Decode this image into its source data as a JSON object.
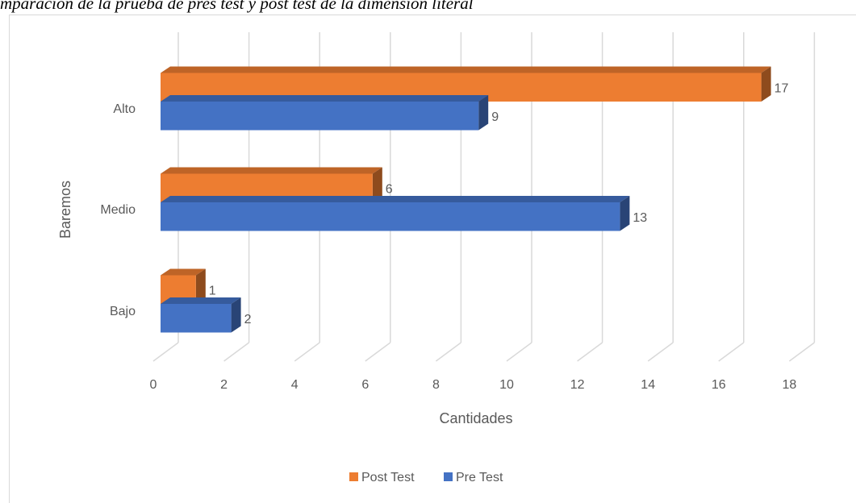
{
  "chart_data": {
    "type": "bar3d_horizontal",
    "title": "mparación de la prueba de pres test y post test de la dimensión literal",
    "categories": [
      "Bajo",
      "Medio",
      "Alto"
    ],
    "series": [
      {
        "name": "Post Test",
        "color": "#ed7d31",
        "values": [
          1,
          6,
          17
        ]
      },
      {
        "name": "Pre Test",
        "color": "#4472c4",
        "values": [
          2,
          13,
          9
        ]
      }
    ],
    "xlim": [
      0,
      18
    ],
    "xticks": [
      0,
      2,
      4,
      6,
      8,
      10,
      12,
      14,
      16,
      18
    ],
    "xlabel": "Cantidades",
    "ylabel": "Baremos",
    "grid": true,
    "legend": "bottom"
  }
}
